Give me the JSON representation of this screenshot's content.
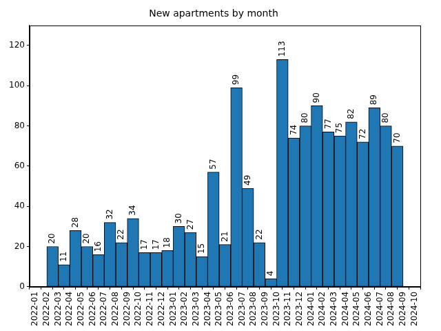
{
  "chart_data": {
    "type": "histogram",
    "title": "New apartments by month",
    "bins": [
      "2022-02",
      "2022-03",
      "2022-04",
      "2022-05",
      "2022-06",
      "2022-07",
      "2022-08",
      "2022-09",
      "2022-10",
      "2022-11",
      "2022-12",
      "2023-01",
      "2023-02",
      "2023-03",
      "2023-04",
      "2023-05",
      "2023-06",
      "2023-07",
      "2023-08",
      "2023-09",
      "2023-10",
      "2023-11",
      "2023-12",
      "2024-01",
      "2024-02",
      "2024-03",
      "2024-04",
      "2024-05",
      "2024-06",
      "2024-07",
      "2024-08",
      "2024-09"
    ],
    "values": [
      20,
      11,
      28,
      20,
      16,
      32,
      22,
      34,
      17,
      17,
      18,
      30,
      27,
      15,
      57,
      21,
      99,
      49,
      22,
      4,
      113,
      74,
      80,
      90,
      77,
      75,
      82,
      72,
      89,
      80,
      70
    ],
    "color": "#1f77b4",
    "xlim": [
      "2022-01",
      "2024-10"
    ],
    "xticks": [
      "2022-01",
      "2022-02",
      "2022-03",
      "2022-04",
      "2022-05",
      "2022-06",
      "2022-07",
      "2022-08",
      "2022-09",
      "2022-10",
      "2022-11",
      "2022-12",
      "2023-01",
      "2023-02",
      "2023-03",
      "2023-04",
      "2023-05",
      "2023-06",
      "2023-07",
      "2023-08",
      "2023-09",
      "2023-10",
      "2023-11",
      "2023-12",
      "2024-01",
      "2024-02",
      "2024-03",
      "2024-04",
      "2024-05",
      "2024-06",
      "2024-07",
      "2024-08",
      "2024-09",
      "2024-10"
    ],
    "ylim": [
      0,
      130
    ],
    "yticks": [
      0,
      20,
      40,
      60,
      80,
      100,
      120
    ],
    "grid": false,
    "data_labels": true
  }
}
